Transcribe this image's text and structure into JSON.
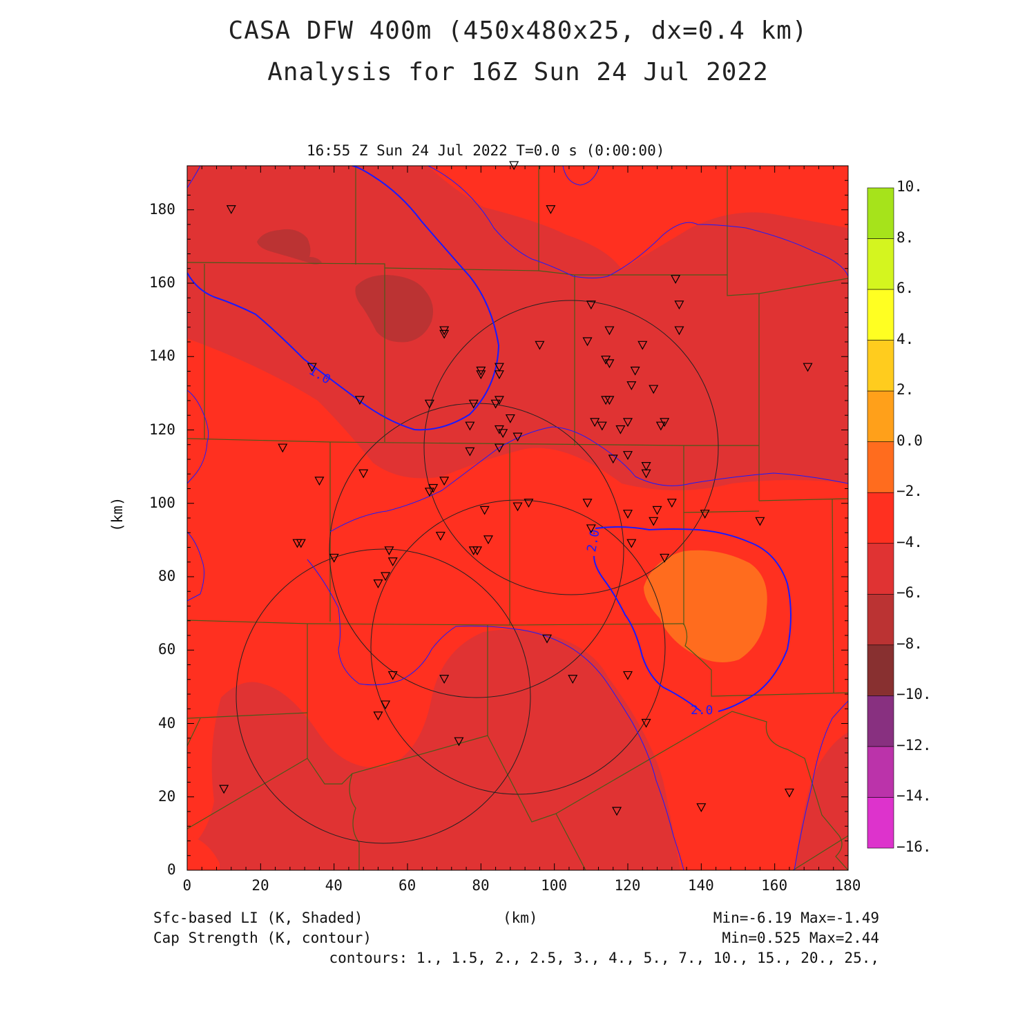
{
  "header": {
    "title_line1": "CASA DFW 400m (450x480x25, dx=0.4 km)",
    "title_line2": "Analysis for 16Z Sun 24 Jul 2022",
    "valid_time": "16:55 Z Sun 24 Jul 2022    T=0.0 s (0:00:00)"
  },
  "axes": {
    "x_label": "(km)",
    "y_label": "(km)",
    "x_ticks": [
      "0",
      "20",
      "40",
      "60",
      "80",
      "100",
      "120",
      "140",
      "160",
      "180"
    ],
    "y_ticks": [
      "0",
      "20",
      "40",
      "60",
      "80",
      "100",
      "120",
      "140",
      "160",
      "180"
    ],
    "x_range": [
      0,
      180
    ],
    "y_range": [
      0,
      192
    ]
  },
  "colorbar": {
    "labels": [
      "10.",
      "8.",
      "6.",
      "4.",
      "2.",
      "0.0",
      "−2.",
      "−4.",
      "−6.",
      "−8.",
      "−10.",
      "−12.",
      "−14.",
      "−16."
    ],
    "colors": [
      "#a6e31b",
      "#d4f51f",
      "#ffff22",
      "#ffcc1e",
      "#ffa01a",
      "#ff6c1e",
      "#ff3020",
      "#e03333",
      "#bb3333",
      "#883030",
      "#883080",
      "#bb33aa",
      "#dd33cc"
    ]
  },
  "footer": {
    "field1": "Sfc-based LI (K, Shaded)",
    "field2": "Cap Strength (K, contour)",
    "x_unit": "(km)",
    "stats1": "Min=-6.19 Max=-1.49",
    "stats2": "Min=0.525 Max=2.44",
    "contours": "contours: 1., 1.5, 2., 2.5, 3., 4., 5., 7., 10., 15., 20., 25.,"
  },
  "contour_labels": [
    "1.0",
    "2.0",
    "2.0"
  ],
  "colors": {
    "li_minus2_to_minus4": "#ff3020",
    "li_minus4_to_minus6": "#e03333",
    "li_minus6_to_minus8": "#bb3333",
    "li_0_to_minus2": "#ff6c1e",
    "cap_contour": "#1a1aff",
    "county_lines": "#4a5a1a",
    "radar_rings": "#222222"
  },
  "radars": [
    {
      "x": 105,
      "y": 115
    },
    {
      "x": 79,
      "y": 88
    },
    {
      "x": 91,
      "y": 61
    },
    {
      "x": 55,
      "y": 48
    }
  ],
  "stations": [
    [
      89,
      192
    ],
    [
      12,
      180
    ],
    [
      99,
      180
    ],
    [
      133,
      161
    ],
    [
      134,
      154
    ],
    [
      110,
      154
    ],
    [
      134,
      147
    ],
    [
      70,
      147
    ],
    [
      70,
      146
    ],
    [
      115,
      147
    ],
    [
      109,
      144
    ],
    [
      124,
      143
    ],
    [
      96,
      143
    ],
    [
      34,
      137
    ],
    [
      85,
      137
    ],
    [
      80,
      136
    ],
    [
      85,
      135
    ],
    [
      80,
      135
    ],
    [
      114,
      139
    ],
    [
      115,
      138
    ],
    [
      122,
      136
    ],
    [
      121,
      132
    ],
    [
      127,
      131
    ],
    [
      169,
      137
    ],
    [
      47,
      128
    ],
    [
      114,
      128
    ],
    [
      115,
      128
    ],
    [
      85,
      128
    ],
    [
      84,
      127
    ],
    [
      66,
      127
    ],
    [
      78,
      127
    ],
    [
      88,
      123
    ],
    [
      111,
      122
    ],
    [
      113,
      121
    ],
    [
      120,
      122
    ],
    [
      130,
      122
    ],
    [
      129,
      121
    ],
    [
      77,
      121
    ],
    [
      85,
      120
    ],
    [
      118,
      120
    ],
    [
      86,
      119
    ],
    [
      90,
      118
    ],
    [
      85,
      115
    ],
    [
      26,
      115
    ],
    [
      77,
      114
    ],
    [
      116,
      112
    ],
    [
      120,
      113
    ],
    [
      125,
      110
    ],
    [
      125,
      108
    ],
    [
      48,
      108
    ],
    [
      36,
      106
    ],
    [
      70,
      106
    ],
    [
      67,
      104
    ],
    [
      66,
      103
    ],
    [
      109,
      100
    ],
    [
      132,
      100
    ],
    [
      93,
      100
    ],
    [
      90,
      99
    ],
    [
      81,
      98
    ],
    [
      128,
      98
    ],
    [
      120,
      97
    ],
    [
      141,
      97
    ],
    [
      156,
      95
    ],
    [
      127,
      95
    ],
    [
      110,
      93
    ],
    [
      69,
      91
    ],
    [
      30,
      89
    ],
    [
      31,
      89
    ],
    [
      78,
      87
    ],
    [
      79,
      87
    ],
    [
      55,
      87
    ],
    [
      82,
      90
    ],
    [
      121,
      89
    ],
    [
      40,
      85
    ],
    [
      130,
      85
    ],
    [
      56,
      84
    ],
    [
      54,
      80
    ],
    [
      52,
      78
    ],
    [
      98,
      63
    ],
    [
      56,
      53
    ],
    [
      120,
      53
    ],
    [
      70,
      52
    ],
    [
      105,
      52
    ],
    [
      54,
      45
    ],
    [
      52,
      42
    ],
    [
      125,
      40
    ],
    [
      74,
      35
    ],
    [
      10,
      22
    ],
    [
      164,
      21
    ],
    [
      140,
      17
    ],
    [
      117,
      16
    ]
  ]
}
